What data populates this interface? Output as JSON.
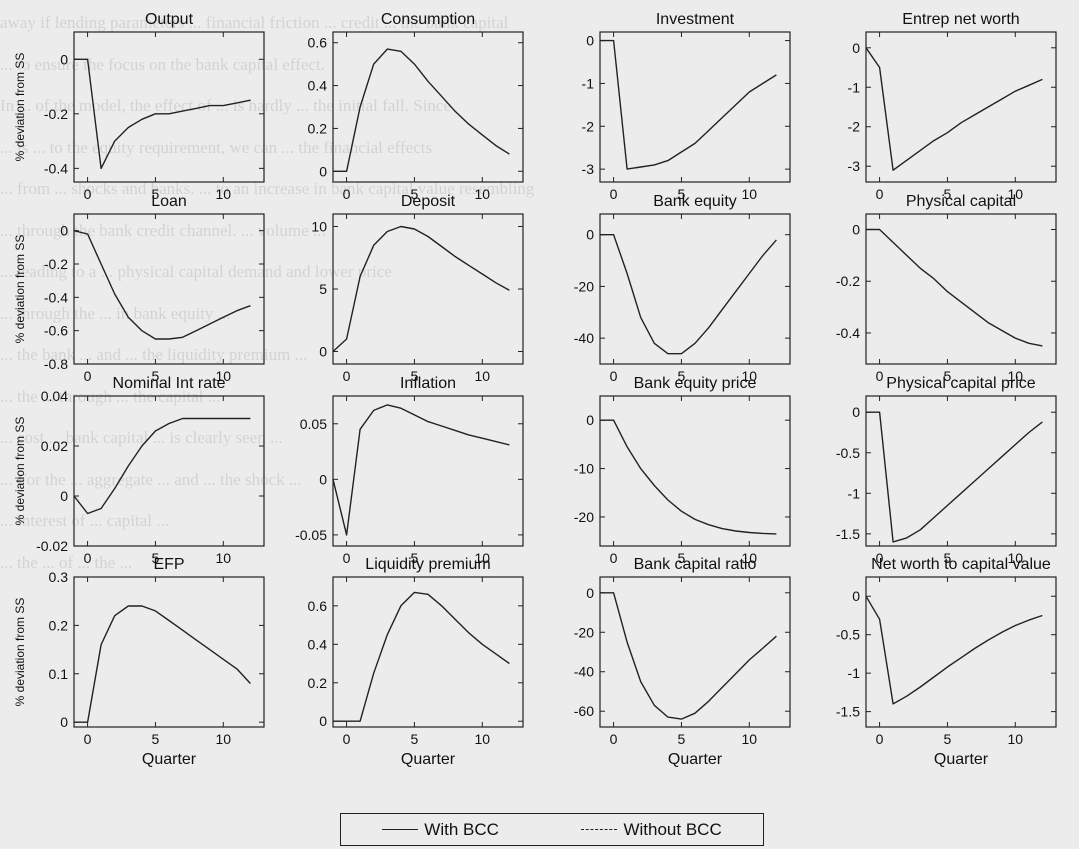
{
  "bg_text_lines": [
    "away if lending parameters ... financial friction ... credit ... the bank capital",
    "... to ensure the focus on the bank capital effect.",
    "In ... of the model, the effect of ... is hardly ... the initial fall. Since",
    "... is ... to the equity requirement, we can ... the financial effects",
    "... from ... shocks and banks. ... to an increase in bank capital value resembling",
    "... through the bank credit channel. ... volume ...",
    "... leading to a ... physical capital demand and lower price",
    "... through the ... in bank equity ...",
    "... the bank ... and ... the liquidity premium ...",
    "... the ... through ... the capital ...",
    "... cost ... bank capital ... is clearly seen ...",
    "... For the ... aggregate ... and ... the shock ...",
    "... interest of ... capital ...",
    "... the ... of ... the ..."
  ],
  "legend": {
    "with_label": "With BCC",
    "without_label": "Without BCC"
  },
  "chart_data": [
    {
      "type": "line",
      "title": "Output",
      "ylabel": "% deviation from SS",
      "xlabel": "",
      "xlim": [
        -1,
        13
      ],
      "ylim": [
        -0.45,
        0.1
      ],
      "xticks": [
        0,
        5,
        10
      ],
      "yticks": [
        0,
        -0.2,
        -0.4
      ],
      "ytick_labels": [
        "0",
        "-0.2",
        "-0.4"
      ],
      "xtick_labels": [
        "0",
        "5",
        "10"
      ],
      "series": [
        {
          "name": "With BCC",
          "dash": "solid",
          "x": [
            -1,
            0,
            1,
            2,
            3,
            4,
            5,
            6,
            7,
            8,
            9,
            10,
            11,
            12
          ],
          "y": [
            0,
            0,
            -0.4,
            -0.3,
            -0.25,
            -0.22,
            -0.2,
            -0.2,
            -0.19,
            -0.18,
            -0.17,
            -0.17,
            -0.16,
            -0.15
          ]
        }
      ]
    },
    {
      "type": "line",
      "title": "Consumption",
      "ylabel": "",
      "xlabel": "",
      "xlim": [
        -1,
        13
      ],
      "ylim": [
        -0.05,
        0.65
      ],
      "xticks": [
        0,
        5,
        10
      ],
      "yticks": [
        0,
        0.2,
        0.4,
        0.6
      ],
      "ytick_labels": [
        "0",
        "0.2",
        "0.4",
        "0.6"
      ],
      "xtick_labels": [
        "0",
        "5",
        "10"
      ],
      "series": [
        {
          "name": "With BCC",
          "dash": "solid",
          "x": [
            -1,
            0,
            1,
            2,
            3,
            4,
            5,
            6,
            7,
            8,
            9,
            10,
            11,
            12
          ],
          "y": [
            0,
            0,
            0.3,
            0.5,
            0.57,
            0.56,
            0.5,
            0.42,
            0.35,
            0.28,
            0.22,
            0.17,
            0.12,
            0.08
          ]
        }
      ]
    },
    {
      "type": "line",
      "title": "Investment",
      "ylabel": "",
      "xlabel": "",
      "xlim": [
        -1,
        13
      ],
      "ylim": [
        -3.3,
        0.2
      ],
      "xticks": [
        0,
        5,
        10
      ],
      "yticks": [
        0,
        -1,
        -2,
        -3
      ],
      "ytick_labels": [
        "0",
        "-1",
        "-2",
        "-3"
      ],
      "xtick_labels": [
        "0",
        "5",
        "10"
      ],
      "series": [
        {
          "name": "With BCC",
          "dash": "solid",
          "x": [
            -1,
            0,
            1,
            2,
            3,
            4,
            5,
            6,
            7,
            8,
            9,
            10,
            11,
            12
          ],
          "y": [
            0,
            0,
            -3.0,
            -2.95,
            -2.9,
            -2.8,
            -2.6,
            -2.4,
            -2.1,
            -1.8,
            -1.5,
            -1.2,
            -1.0,
            -0.8
          ]
        }
      ]
    },
    {
      "type": "line",
      "title": "Entrep net worth",
      "ylabel": "",
      "xlabel": "",
      "xlim": [
        -1,
        13
      ],
      "ylim": [
        -3.4,
        0.4
      ],
      "xticks": [
        0,
        5,
        10
      ],
      "yticks": [
        0,
        -1,
        -2,
        -3
      ],
      "ytick_labels": [
        "0",
        "-1",
        "-2",
        "-3"
      ],
      "xtick_labels": [
        "0",
        "5",
        "10"
      ],
      "series": [
        {
          "name": "With BCC",
          "dash": "solid",
          "x": [
            -1,
            0,
            1,
            2,
            3,
            4,
            5,
            6,
            7,
            8,
            9,
            10,
            11,
            12
          ],
          "y": [
            0,
            -0.5,
            -3.1,
            -2.85,
            -2.6,
            -2.35,
            -2.15,
            -1.9,
            -1.7,
            -1.5,
            -1.3,
            -1.1,
            -0.95,
            -0.8
          ]
        }
      ]
    },
    {
      "type": "line",
      "title": "Loan",
      "ylabel": "% deviation from SS",
      "xlabel": "",
      "xlim": [
        -1,
        13
      ],
      "ylim": [
        -0.8,
        0.1
      ],
      "xticks": [
        0,
        5,
        10
      ],
      "yticks": [
        0,
        -0.2,
        -0.4,
        -0.6,
        -0.8
      ],
      "ytick_labels": [
        "0",
        "-0.2",
        "-0.4",
        "-0.6",
        "-0.8"
      ],
      "xtick_labels": [
        "0",
        "5",
        "10"
      ],
      "series": [
        {
          "name": "With BCC",
          "dash": "solid",
          "x": [
            -1,
            0,
            1,
            2,
            3,
            4,
            5,
            6,
            7,
            8,
            9,
            10,
            11,
            12
          ],
          "y": [
            0,
            -0.02,
            -0.2,
            -0.38,
            -0.52,
            -0.6,
            -0.65,
            -0.65,
            -0.64,
            -0.6,
            -0.56,
            -0.52,
            -0.48,
            -0.45
          ]
        }
      ]
    },
    {
      "type": "line",
      "title": "Deposit",
      "ylabel": "",
      "xlabel": "",
      "xlim": [
        -1,
        13
      ],
      "ylim": [
        -1,
        11
      ],
      "xticks": [
        0,
        5,
        10
      ],
      "yticks": [
        0,
        5,
        10
      ],
      "ytick_labels": [
        "0",
        "5",
        "10"
      ],
      "xtick_labels": [
        "0",
        "5",
        "10"
      ],
      "series": [
        {
          "name": "With BCC",
          "dash": "solid",
          "x": [
            -1,
            0,
            1,
            2,
            3,
            4,
            5,
            6,
            7,
            8,
            9,
            10,
            11,
            12
          ],
          "y": [
            0,
            1,
            6,
            8.5,
            9.6,
            10,
            9.8,
            9.2,
            8.4,
            7.6,
            6.9,
            6.2,
            5.5,
            4.9
          ]
        }
      ]
    },
    {
      "type": "line",
      "title": "Bank equity",
      "ylabel": "",
      "xlabel": "",
      "xlim": [
        -1,
        13
      ],
      "ylim": [
        -50,
        8
      ],
      "xticks": [
        0,
        5,
        10
      ],
      "yticks": [
        0,
        -20,
        -40
      ],
      "ytick_labels": [
        "0",
        "-20",
        "-40"
      ],
      "xtick_labels": [
        "0",
        "5",
        "10"
      ],
      "series": [
        {
          "name": "With BCC",
          "dash": "solid",
          "x": [
            -1,
            0,
            1,
            2,
            3,
            4,
            5,
            6,
            7,
            8,
            9,
            10,
            11,
            12
          ],
          "y": [
            0,
            0,
            -15,
            -32,
            -42,
            -46,
            -46,
            -42,
            -36,
            -29,
            -22,
            -15,
            -8,
            -2
          ]
        }
      ]
    },
    {
      "type": "line",
      "title": "Physical capital",
      "ylabel": "",
      "xlabel": "",
      "xlim": [
        -1,
        13
      ],
      "ylim": [
        -0.52,
        0.06
      ],
      "xticks": [
        0,
        5,
        10
      ],
      "yticks": [
        0,
        -0.2,
        -0.4
      ],
      "ytick_labels": [
        "0",
        "-0.2",
        "-0.4"
      ],
      "xtick_labels": [
        "0",
        "5",
        "10"
      ],
      "series": [
        {
          "name": "With BCC",
          "dash": "solid",
          "x": [
            -1,
            0,
            1,
            2,
            3,
            4,
            5,
            6,
            7,
            8,
            9,
            10,
            11,
            12
          ],
          "y": [
            0,
            0,
            -0.05,
            -0.1,
            -0.15,
            -0.19,
            -0.24,
            -0.28,
            -0.32,
            -0.36,
            -0.39,
            -0.42,
            -0.44,
            -0.45
          ]
        }
      ]
    },
    {
      "type": "line",
      "title": "Nominal Int rate",
      "ylabel": "% deviation from SS",
      "xlabel": "",
      "xlim": [
        -1,
        13
      ],
      "ylim": [
        -0.02,
        0.04
      ],
      "xticks": [
        0,
        5,
        10
      ],
      "yticks": [
        0.04,
        0.02,
        0,
        -0.02
      ],
      "ytick_labels": [
        "0.04",
        "0.02",
        "0",
        "-0.02"
      ],
      "xtick_labels": [
        "0",
        "5",
        "10"
      ],
      "series": [
        {
          "name": "With BCC",
          "dash": "solid",
          "x": [
            -1,
            0,
            1,
            2,
            3,
            4,
            5,
            6,
            7,
            8,
            9,
            10,
            11,
            12
          ],
          "y": [
            0,
            -0.007,
            -0.005,
            0.003,
            0.012,
            0.02,
            0.026,
            0.029,
            0.031,
            0.031,
            0.031,
            0.031,
            0.031,
            0.031
          ]
        }
      ]
    },
    {
      "type": "line",
      "title": "Inflation",
      "ylabel": "",
      "xlabel": "",
      "xlim": [
        -1,
        13
      ],
      "ylim": [
        -0.06,
        0.075
      ],
      "xticks": [
        0,
        5,
        10
      ],
      "yticks": [
        0.05,
        0,
        -0.05
      ],
      "ytick_labels": [
        "0.05",
        "0",
        "-0.05"
      ],
      "xtick_labels": [
        "0",
        "5",
        "10"
      ],
      "series": [
        {
          "name": "With BCC",
          "dash": "solid",
          "x": [
            -1,
            0,
            1,
            2,
            3,
            4,
            5,
            6,
            7,
            8,
            9,
            10,
            11,
            12
          ],
          "y": [
            0,
            -0.05,
            0.045,
            0.062,
            0.067,
            0.064,
            0.058,
            0.052,
            0.048,
            0.044,
            0.04,
            0.037,
            0.034,
            0.031
          ]
        }
      ]
    },
    {
      "type": "line",
      "title": "Bank equity price",
      "ylabel": "",
      "xlabel": "",
      "xlim": [
        -1,
        13
      ],
      "ylim": [
        -26,
        5
      ],
      "xticks": [
        0,
        5,
        10
      ],
      "yticks": [
        0,
        -10,
        -20
      ],
      "ytick_labels": [
        "0",
        "-10",
        "-20"
      ],
      "xtick_labels": [
        "0",
        "5",
        "10"
      ],
      "series": [
        {
          "name": "With BCC",
          "dash": "solid",
          "x": [
            -1,
            0,
            1,
            2,
            3,
            4,
            5,
            6,
            7,
            8,
            9,
            10,
            11,
            12
          ],
          "y": [
            0,
            0,
            -5.5,
            -10,
            -13.5,
            -16.5,
            -18.8,
            -20.5,
            -21.6,
            -22.4,
            -22.9,
            -23.2,
            -23.4,
            -23.5
          ]
        }
      ]
    },
    {
      "type": "line",
      "title": "Physical capital price",
      "ylabel": "",
      "xlabel": "",
      "xlim": [
        -1,
        13
      ],
      "ylim": [
        -1.65,
        0.2
      ],
      "xticks": [
        0,
        5,
        10
      ],
      "yticks": [
        0,
        -0.5,
        -1,
        -1.5
      ],
      "ytick_labels": [
        "0",
        "-0.5",
        "-1",
        "-1.5"
      ],
      "xtick_labels": [
        "0",
        "5",
        "10"
      ],
      "series": [
        {
          "name": "With BCC",
          "dash": "solid",
          "x": [
            -1,
            0,
            1,
            2,
            3,
            4,
            5,
            6,
            7,
            8,
            9,
            10,
            11,
            12
          ],
          "y": [
            0,
            0,
            -1.6,
            -1.55,
            -1.45,
            -1.3,
            -1.15,
            -1.0,
            -0.85,
            -0.7,
            -0.55,
            -0.4,
            -0.25,
            -0.12
          ]
        }
      ]
    },
    {
      "type": "line",
      "title": "EFP",
      "ylabel": "% deviation from SS",
      "xlabel": "Quarter",
      "xlim": [
        -1,
        13
      ],
      "ylim": [
        -0.01,
        0.3
      ],
      "xticks": [
        0,
        5,
        10
      ],
      "yticks": [
        0.3,
        0.2,
        0.1,
        0
      ],
      "ytick_labels": [
        "0.3",
        "0.2",
        "0.1",
        "0"
      ],
      "xtick_labels": [
        "0",
        "5",
        "10"
      ],
      "series": [
        {
          "name": "With BCC",
          "dash": "solid",
          "x": [
            -1,
            0,
            1,
            2,
            3,
            4,
            5,
            6,
            7,
            8,
            9,
            10,
            11,
            12
          ],
          "y": [
            0,
            0,
            0.16,
            0.22,
            0.24,
            0.24,
            0.23,
            0.21,
            0.19,
            0.17,
            0.15,
            0.13,
            0.11,
            0.08
          ]
        }
      ]
    },
    {
      "type": "line",
      "title": "Liquidity premium",
      "ylabel": "",
      "xlabel": "Quarter",
      "xlim": [
        -1,
        13
      ],
      "ylim": [
        -0.03,
        0.75
      ],
      "xticks": [
        0,
        5,
        10
      ],
      "yticks": [
        0,
        0.2,
        0.4,
        0.6
      ],
      "ytick_labels": [
        "0",
        "0.2",
        "0.4",
        "0.6"
      ],
      "xtick_labels": [
        "0",
        "5",
        "10"
      ],
      "series": [
        {
          "name": "With BCC",
          "dash": "solid",
          "x": [
            -1,
            0,
            1,
            2,
            3,
            4,
            5,
            6,
            7,
            8,
            9,
            10,
            11,
            12
          ],
          "y": [
            0,
            0,
            0,
            0.25,
            0.45,
            0.6,
            0.67,
            0.66,
            0.6,
            0.53,
            0.46,
            0.4,
            0.35,
            0.3
          ]
        }
      ]
    },
    {
      "type": "line",
      "title": "Bank capital ratio",
      "ylabel": "",
      "xlabel": "Quarter",
      "xlim": [
        -1,
        13
      ],
      "ylim": [
        -68,
        8
      ],
      "xticks": [
        0,
        5,
        10
      ],
      "yticks": [
        0,
        -20,
        -40,
        -60
      ],
      "ytick_labels": [
        "0",
        "-20",
        "-40",
        "-60"
      ],
      "xtick_labels": [
        "0",
        "5",
        "10"
      ],
      "series": [
        {
          "name": "With BCC",
          "dash": "solid",
          "x": [
            -1,
            0,
            1,
            2,
            3,
            4,
            5,
            6,
            7,
            8,
            9,
            10,
            11,
            12
          ],
          "y": [
            0,
            0,
            -25,
            -45,
            -57,
            -63,
            -64,
            -61,
            -55,
            -48,
            -41,
            -34,
            -28,
            -22
          ]
        }
      ]
    },
    {
      "type": "line",
      "title": "Net worth to capital value",
      "ylabel": "",
      "xlabel": "Quarter",
      "xlim": [
        -1,
        13
      ],
      "ylim": [
        -1.7,
        0.25
      ],
      "xticks": [
        0,
        5,
        10
      ],
      "yticks": [
        0,
        -0.5,
        -1,
        -1.5
      ],
      "ytick_labels": [
        "0",
        "-0.5",
        "-1",
        "-1.5"
      ],
      "xtick_labels": [
        "0",
        "5",
        "10"
      ],
      "series": [
        {
          "name": "With BCC",
          "dash": "solid",
          "x": [
            -1,
            0,
            1,
            2,
            3,
            4,
            5,
            6,
            7,
            8,
            9,
            10,
            11,
            12
          ],
          "y": [
            0,
            -0.3,
            -1.4,
            -1.3,
            -1.18,
            -1.05,
            -0.92,
            -0.8,
            -0.68,
            -0.57,
            -0.47,
            -0.38,
            -0.31,
            -0.25
          ]
        }
      ]
    }
  ]
}
